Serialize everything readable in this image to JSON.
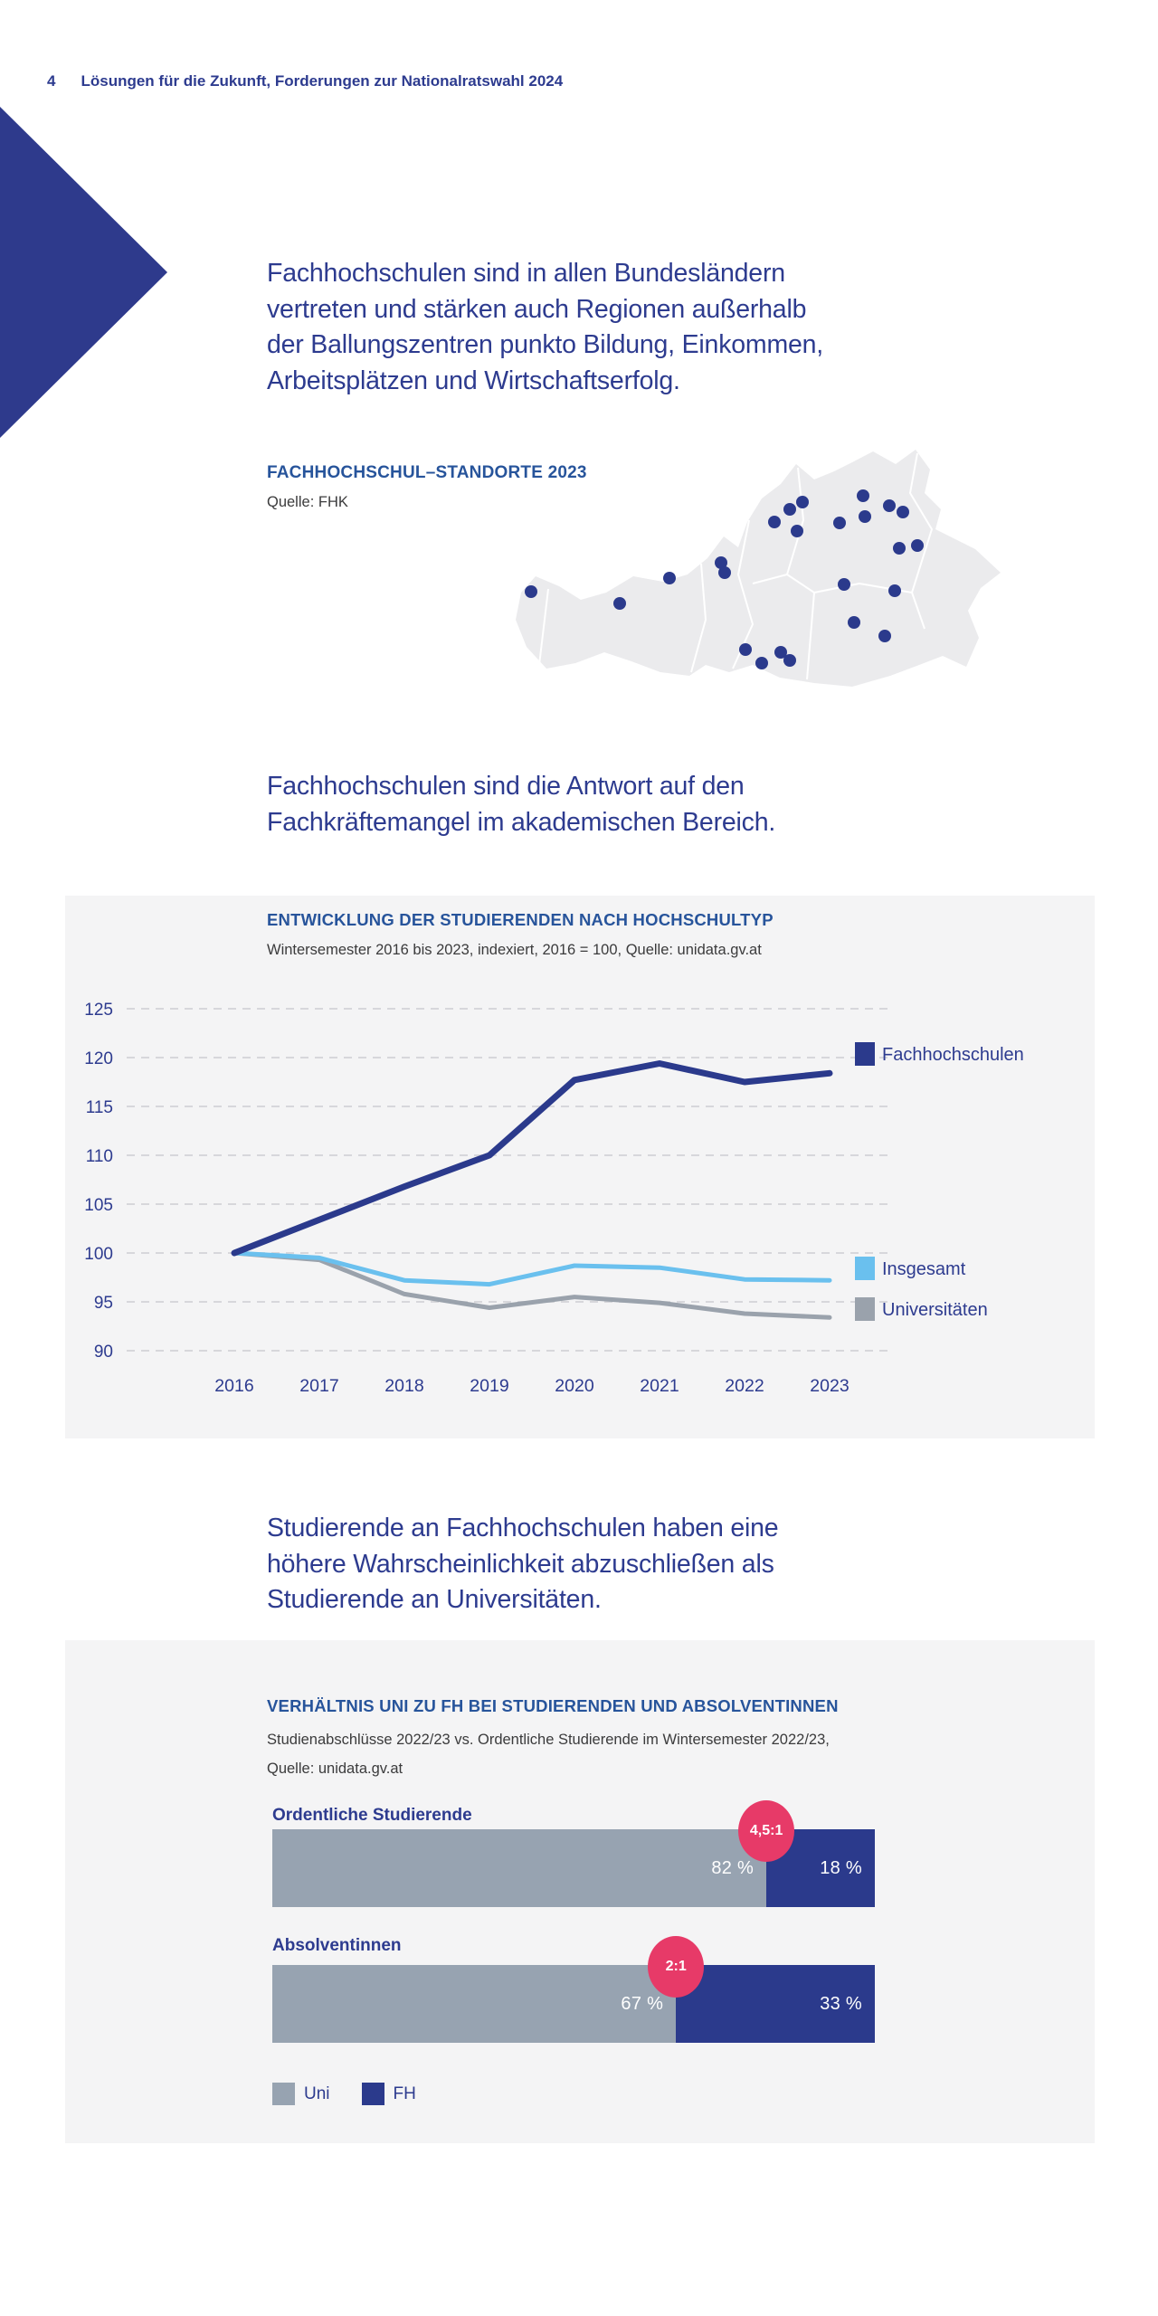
{
  "page": {
    "number": "4",
    "header_title": "Lösungen für die Zukunft, Forderungen zur Nationalratswahl 2024"
  },
  "colors": {
    "brand_navy": "#2e3a8c",
    "headline_navy": "#2d3b8f",
    "panel_title_blue": "#27549b",
    "panel_bg": "#f4f4f5",
    "map_fill": "#ebebed",
    "grid_line": "#d7d7db"
  },
  "headlines": [
    {
      "lines": [
        "Fachhochschulen sind in allen Bundesländern",
        "vertreten und stärken auch Regionen außerhalb",
        "der Ballungszentren punkto Bildung, Einkommen,",
        "Arbeitsplätzen und Wirtschaftserfolg."
      ]
    },
    {
      "lines": [
        "Fachhochschulen sind die Antwort auf den",
        "Fachkräftemangel im akademischen Bereich."
      ]
    },
    {
      "lines": [
        "Studierende an Fachhochschulen haben eine",
        "höhere Wahrscheinlichkeit abzuschließen als",
        "Studierende an Universitäten."
      ]
    }
  ],
  "map": {
    "title": "FACHHOCHSCHUL–STANDORTE 2023",
    "source": "Quelle: FHK",
    "dot_color": "#2b3a8c",
    "dot_radius": 7,
    "dots": [
      [
        17,
        169
      ],
      [
        115,
        182
      ],
      [
        170,
        154
      ],
      [
        227,
        137
      ],
      [
        231,
        148
      ],
      [
        286,
        92
      ],
      [
        303,
        78
      ],
      [
        317,
        70
      ],
      [
        311,
        102
      ],
      [
        254,
        233
      ],
      [
        272,
        248
      ],
      [
        293,
        236
      ],
      [
        303,
        245
      ],
      [
        358,
        93
      ],
      [
        384,
        63
      ],
      [
        386,
        86
      ],
      [
        413,
        74
      ],
      [
        428,
        81
      ],
      [
        424,
        121
      ],
      [
        444,
        118
      ],
      [
        363,
        161
      ],
      [
        419,
        168
      ],
      [
        374,
        203
      ],
      [
        408,
        218
      ]
    ]
  },
  "chart_data": [
    {
      "type": "line",
      "title": "ENTWICKLUNG DER STUDIERENDEN NACH HOCHSCHULTYP",
      "subtitle": "Wintersemester 2016 bis 2023, indexiert, 2016 = 100, Quelle: unidata.gv.at",
      "x": [
        "2016",
        "2017",
        "2018",
        "2019",
        "2020",
        "2021",
        "2022",
        "2023"
      ],
      "ylim": [
        90,
        125
      ],
      "ytick_step": 5,
      "grid": "horizontal-dashed",
      "legend_position": "right",
      "series": [
        {
          "name": "Fachhochschulen",
          "color": "#2b3a8c",
          "stroke_width": 7,
          "values": [
            100,
            103.4,
            106.8,
            110,
            117.7,
            119.4,
            117.5,
            118.4
          ]
        },
        {
          "name": "Insgesamt",
          "color": "#6ac0ee",
          "stroke_width": 5,
          "values": [
            100,
            99.5,
            97.2,
            96.8,
            98.7,
            98.5,
            97.3,
            97.2
          ]
        },
        {
          "name": "Universitäten",
          "color": "#9aa2ac",
          "stroke_width": 5,
          "values": [
            100,
            99.3,
            95.8,
            94.4,
            95.5,
            94.9,
            93.8,
            93.4
          ]
        }
      ]
    },
    {
      "type": "bar",
      "variant": "stacked-horizontal-100pct",
      "title": "VERHÄLTNIS UNI ZU FH BEI STUDIERENDEN UND ABSOLVENTINNEN",
      "subtitle_lines": [
        "Studienabschlüsse 2022/23 vs. Ordentliche Studierende im Wintersemester 2022/23,",
        "Quelle: unidata.gv.at"
      ],
      "badge_color": "#e73a68",
      "groups": [
        {
          "label": "Ordentliche Studierende",
          "ratio_badge": "4,5:1",
          "segments": [
            {
              "name": "Uni",
              "pct": 82,
              "label": "82 %"
            },
            {
              "name": "FH",
              "pct": 18,
              "label": "18 %"
            }
          ]
        },
        {
          "label": "Absolventinnen",
          "ratio_badge": "2:1",
          "segments": [
            {
              "name": "Uni",
              "pct": 67,
              "label": "67 %"
            },
            {
              "name": "FH",
              "pct": 33,
              "label": "33 %"
            }
          ]
        }
      ],
      "legend": [
        {
          "label": "Uni",
          "color": "#97a3b1"
        },
        {
          "label": "FH",
          "color": "#2b3a8c"
        }
      ]
    }
  ]
}
